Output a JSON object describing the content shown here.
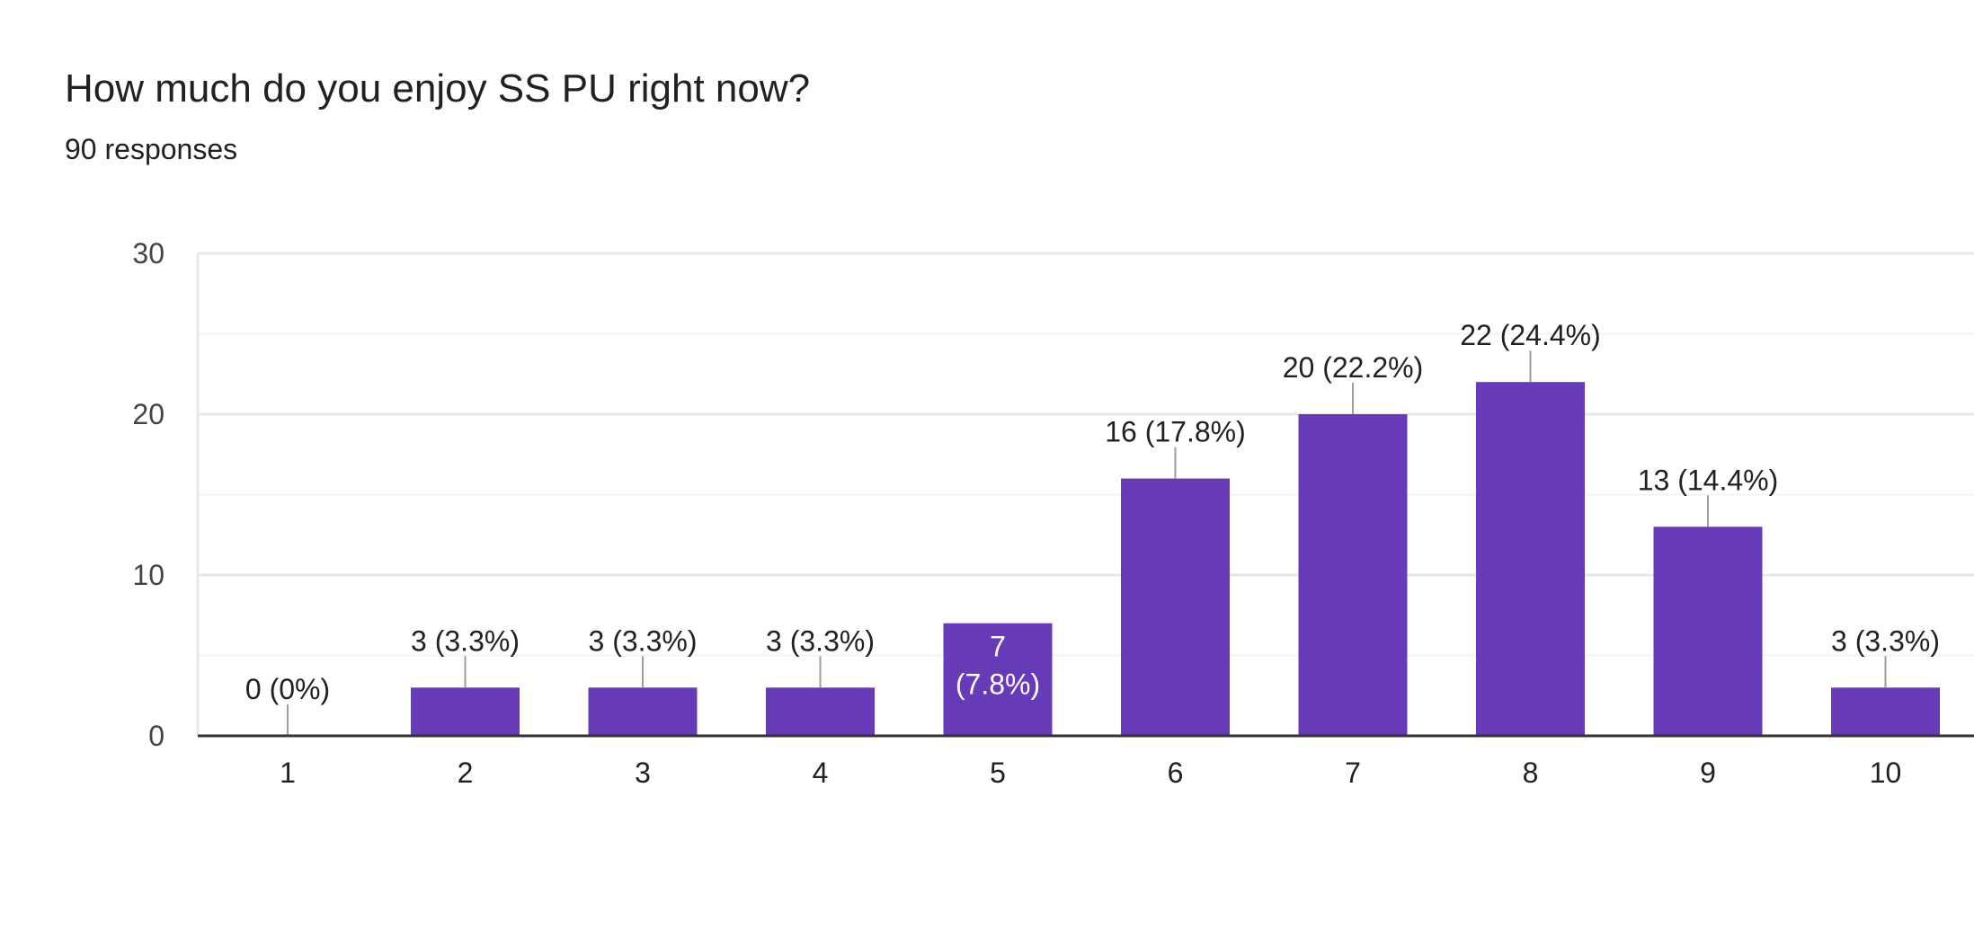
{
  "question": {
    "title": "How much do you enjoy SS PU right now?",
    "responses": "90 responses"
  },
  "colors": {
    "bar": "#673ab7",
    "text": "#202124",
    "axis_text": "#444444",
    "gridline": "#e8e8e8",
    "minor_gridline": "#f3f3f3",
    "baseline": "#333333",
    "leader": "#9e9e9e",
    "inner_label": "#ffffff"
  },
  "chart_data": {
    "type": "bar",
    "categories": [
      "1",
      "2",
      "3",
      "4",
      "5",
      "6",
      "7",
      "8",
      "9",
      "10"
    ],
    "values": [
      0,
      3,
      3,
      3,
      7,
      16,
      20,
      22,
      13,
      3
    ],
    "data_labels": [
      "0 (0%)",
      "3 (3.3%)",
      "3 (3.3%)",
      "3 (3.3%)",
      "7 (7.8%)",
      "16 (17.8%)",
      "20 (22.2%)",
      "22 (24.4%)",
      "13 (14.4%)",
      "3 (3.3%)"
    ],
    "inside_label_parts": [
      "7",
      "(7.8%)"
    ],
    "inside_label_index": 4,
    "ylim": [
      0,
      30
    ],
    "yticks": [
      "0",
      "10",
      "20",
      "30"
    ],
    "minor_gridlines": [
      5,
      15,
      25
    ],
    "grid": true,
    "title": "",
    "xlabel": "",
    "ylabel": ""
  }
}
